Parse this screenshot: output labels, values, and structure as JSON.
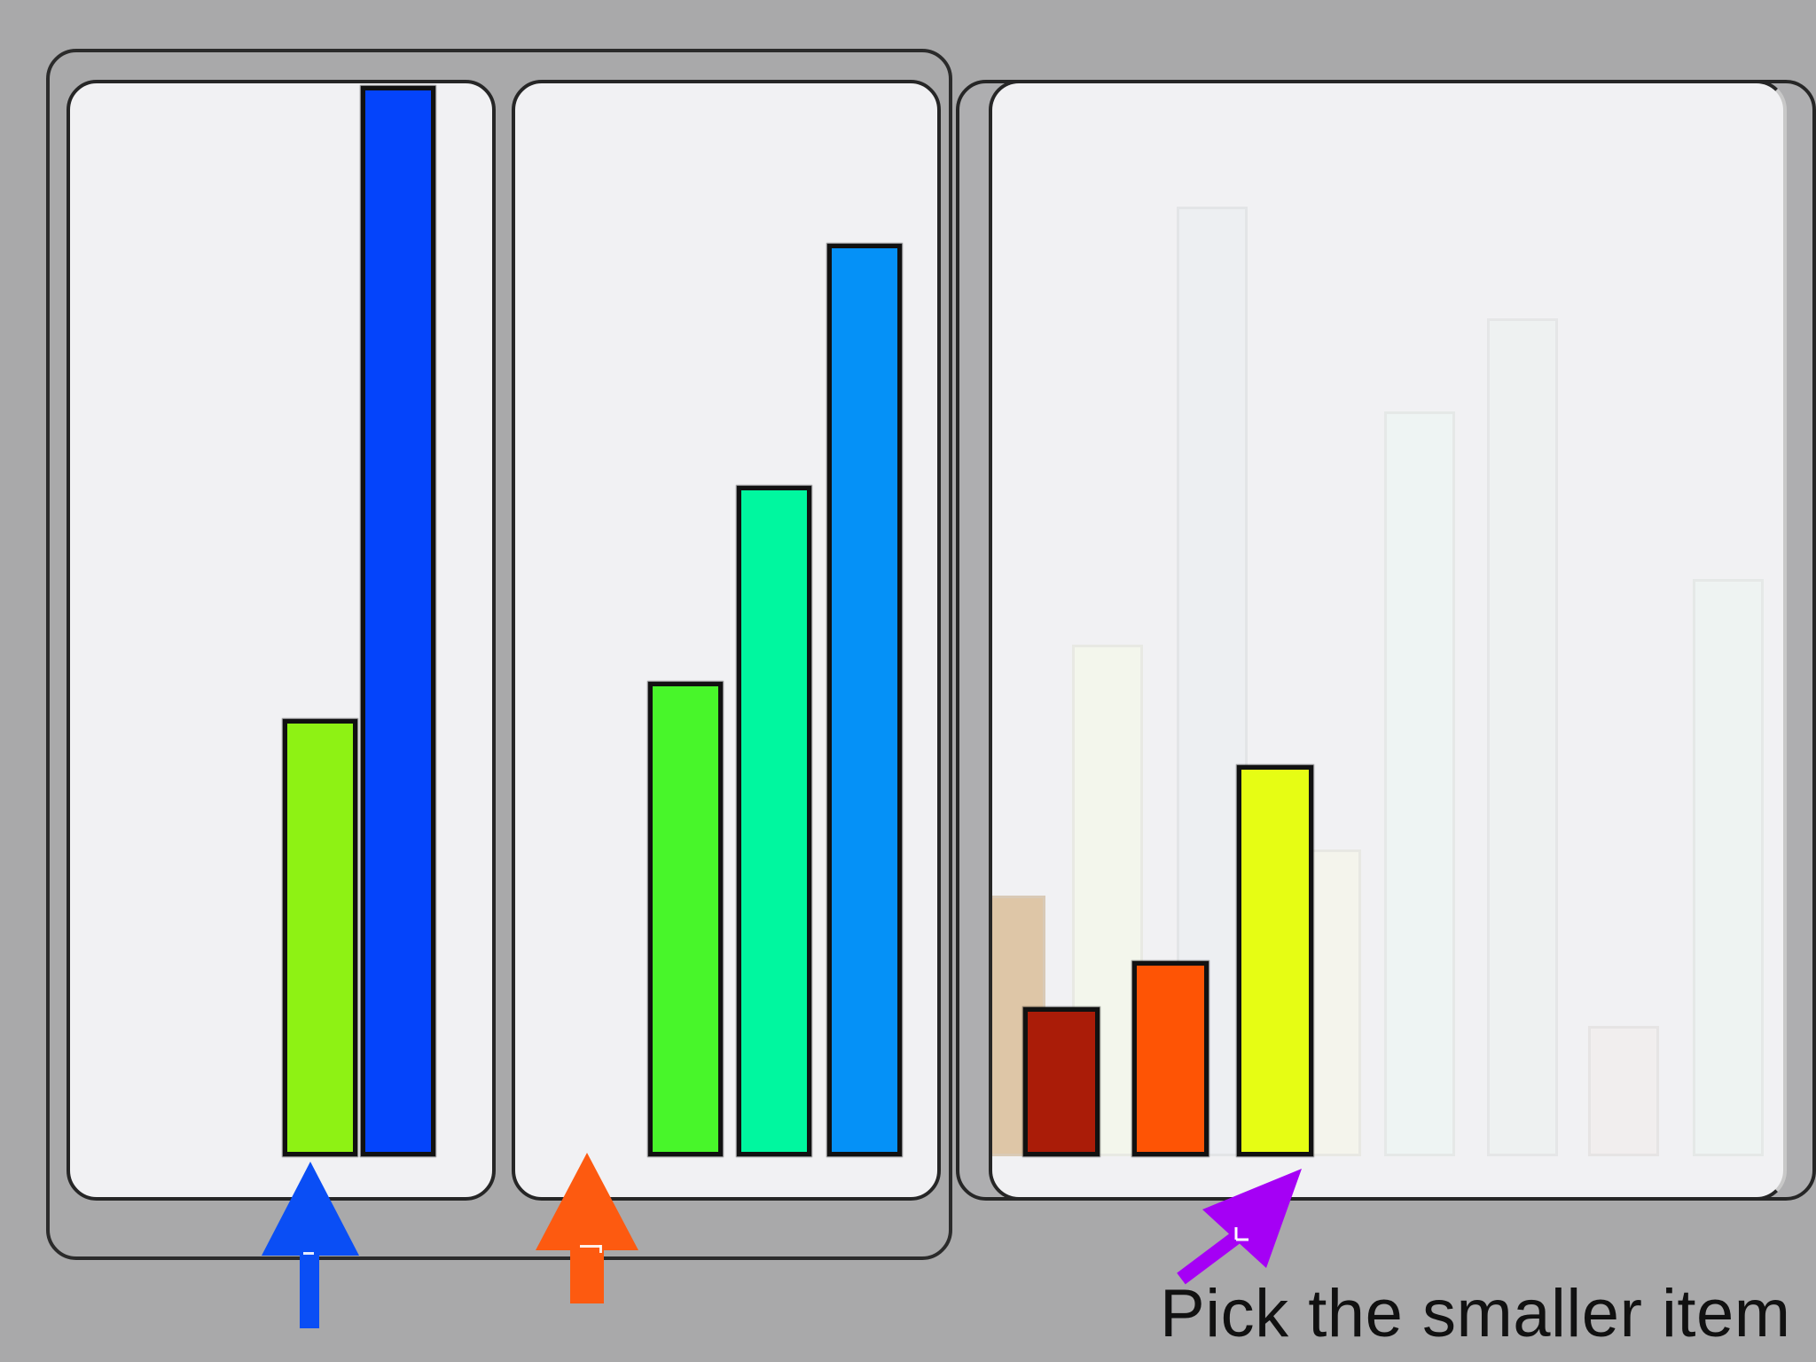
{
  "prompt": {
    "text": "Pick the smaller item"
  },
  "choices": [
    {
      "id": "left-option",
      "arrow_color": "#0a4ef5",
      "bars": [
        {
          "value": 47,
          "color": "#8ef214"
        },
        {
          "value": 115,
          "color": "#0444fb"
        }
      ]
    },
    {
      "id": "middle-option",
      "arrow_color": "#fd5a10",
      "bars": [
        {
          "value": 51,
          "color": "#48f62a"
        },
        {
          "value": 72,
          "color": "#00f79f"
        },
        {
          "value": 98,
          "color": "#0591f7"
        }
      ]
    },
    {
      "id": "right-option",
      "arrow_color": "#a500f5",
      "bars": [
        {
          "value": 16,
          "color": "#aa1c08"
        },
        {
          "value": 21,
          "color": "#fe5405"
        },
        {
          "value": 42,
          "color": "#e6fd14"
        }
      ],
      "ghost_bars": [
        {
          "value": 28,
          "color": "#d8b88e"
        },
        {
          "value": 55,
          "color": "#f4f8ea"
        },
        {
          "value": 102,
          "color": "#eceff2"
        },
        {
          "value": 33,
          "color": "#f5f6ea"
        },
        {
          "value": 80,
          "color": "#eef6f3"
        },
        {
          "value": 90,
          "color": "#eef1f1"
        },
        {
          "value": 14,
          "color": "#f2eded"
        },
        {
          "value": 62,
          "color": "#eef4f2"
        }
      ]
    }
  ],
  "colors": {
    "background": "#a9a9aa",
    "panel": "#f1f1f3",
    "outline": "#262626"
  }
}
